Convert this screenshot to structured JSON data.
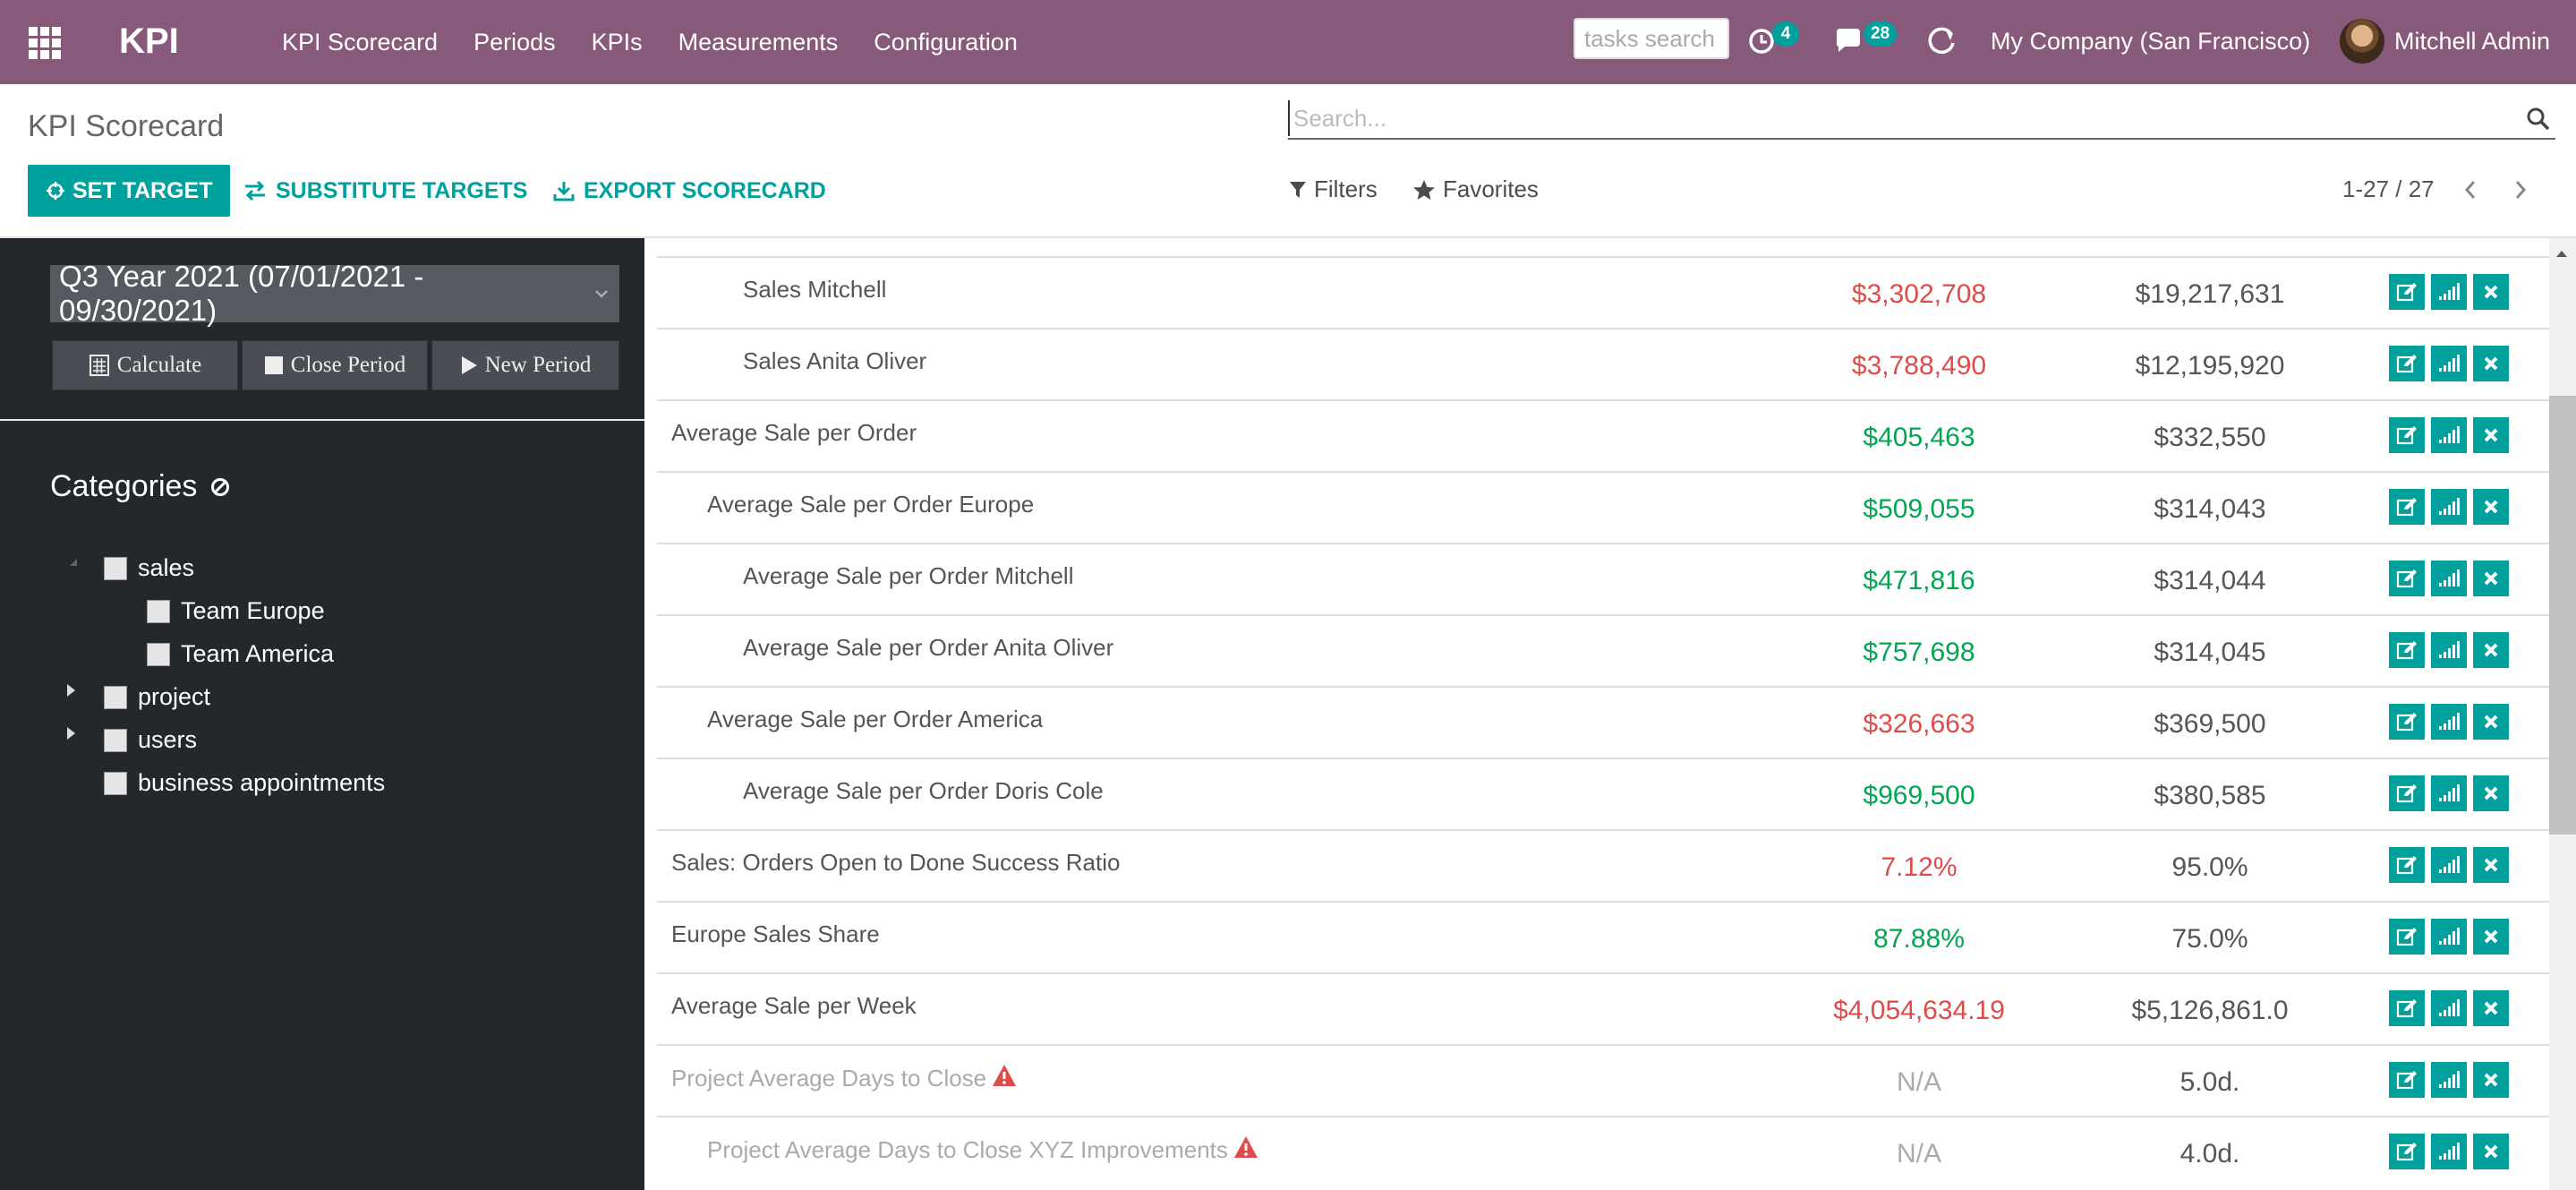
{
  "navbar": {
    "brand": "KPI",
    "menu": [
      "KPI Scorecard",
      "Periods",
      "KPIs",
      "Measurements",
      "Configuration"
    ],
    "tasks_search_placeholder": "tasks search",
    "activity_count": "4",
    "messages_count": "28",
    "company": "My Company (San Francisco)",
    "user": "Mitchell Admin"
  },
  "control_panel": {
    "breadcrumb": "KPI Scorecard",
    "set_target": "SET TARGET",
    "substitute_targets": "SUBSTITUTE TARGETS",
    "export_scorecard": "EXPORT SCORECARD",
    "search_placeholder": "Search...",
    "filters": "Filters",
    "favorites": "Favorites",
    "pager": "1-27 / 27"
  },
  "sidebar": {
    "period": "Q3 Year 2021 (07/01/2021 - 09/30/2021)",
    "calculate": "Calculate",
    "close_period": "Close Period",
    "new_period": "New Period",
    "categories_title": "Categories",
    "tree": [
      {
        "label": "sales",
        "level": 0,
        "expanded": true
      },
      {
        "label": "Team Europe",
        "level": 1
      },
      {
        "label": "Team America",
        "level": 1
      },
      {
        "label": "project",
        "level": 0,
        "collapsed": true
      },
      {
        "label": "users",
        "level": 0,
        "collapsed": true
      },
      {
        "label": "business appointments",
        "level": 0
      }
    ]
  },
  "rows": [
    {
      "name": "Sales Mitchell",
      "indent": 2,
      "value": "$3,302,708",
      "status": "red",
      "target": "$19,217,631"
    },
    {
      "name": "Sales Anita Oliver",
      "indent": 2,
      "value": "$3,788,490",
      "status": "red",
      "target": "$12,195,920"
    },
    {
      "name": "Average Sale per Order",
      "indent": 0,
      "value": "$405,463",
      "status": "green",
      "target": "$332,550"
    },
    {
      "name": "Average Sale per Order Europe",
      "indent": 1,
      "value": "$509,055",
      "status": "green",
      "target": "$314,043"
    },
    {
      "name": "Average Sale per Order Mitchell",
      "indent": 2,
      "value": "$471,816",
      "status": "green",
      "target": "$314,044"
    },
    {
      "name": "Average Sale per Order Anita Oliver",
      "indent": 2,
      "value": "$757,698",
      "status": "green",
      "target": "$314,045"
    },
    {
      "name": "Average Sale per Order America",
      "indent": 1,
      "value": "$326,663",
      "status": "red",
      "target": "$369,500"
    },
    {
      "name": "Average Sale per Order Doris Cole",
      "indent": 2,
      "value": "$969,500",
      "status": "green",
      "target": "$380,585"
    },
    {
      "name": "Sales: Orders Open to Done Success Ratio",
      "indent": 0,
      "value": "7.12%",
      "status": "red",
      "target": "95.0%"
    },
    {
      "name": "Europe Sales Share",
      "indent": 0,
      "value": "87.88%",
      "status": "green",
      "target": "75.0%"
    },
    {
      "name": "Average Sale per Week",
      "indent": 0,
      "value": "$4,054,634.19",
      "status": "red",
      "target": "$5,126,861.0"
    },
    {
      "name": "Project Average Days to Close",
      "indent": 0,
      "value": "N/A",
      "status": "na",
      "target": "5.0d.",
      "warning": true
    },
    {
      "name": "Project Average Days to Close XYZ Improvements",
      "indent": 1,
      "value": "N/A",
      "status": "na",
      "target": "4.0d.",
      "warning": true
    }
  ],
  "colors": {
    "navbar": "#875a7b",
    "accent": "#00a09d",
    "red": "#dd4b4b",
    "green": "#00a651",
    "sidebar": "#24272c"
  }
}
